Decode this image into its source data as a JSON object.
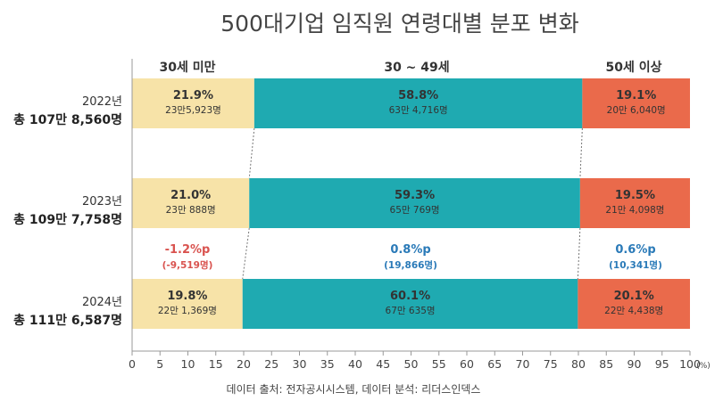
{
  "chart_data": {
    "type": "bar",
    "orientation": "horizontal",
    "stacked": true,
    "title": "500대기업 임직원 연령대별 분포 변화",
    "categories": [
      "30세 미만",
      "30 ~ 49세",
      "50세 이상"
    ],
    "xlim": [
      0,
      100
    ],
    "x_ticks": [
      "0",
      "5",
      "10",
      "15",
      "20",
      "25",
      "30",
      "35",
      "40",
      "45",
      "50",
      "55",
      "60",
      "65",
      "70",
      "75",
      "80",
      "85",
      "90",
      "95",
      "100"
    ],
    "x_unit": "(%)",
    "colors": [
      "#F7E3A8",
      "#1FAAB1",
      "#EA6A4B"
    ],
    "rows": [
      {
        "year": "2022년",
        "total": "총 107만 8,560명",
        "values": [
          21.9,
          58.8,
          19.1
        ],
        "pct_labels": [
          "21.9%",
          "58.8%",
          "19.1%"
        ],
        "count_labels": [
          "23만5,923명",
          "63만 4,716명",
          "20만 6,040명"
        ]
      },
      {
        "year": "2023년",
        "total": "총 109만 7,758명",
        "values": [
          21.0,
          59.3,
          19.5
        ],
        "pct_labels": [
          "21.0%",
          "59.3%",
          "19.5%"
        ],
        "count_labels": [
          "23만 888명",
          "65만 769명",
          "21만 4,098명"
        ]
      },
      {
        "year": "2024년",
        "total": "총 111만 6,587명",
        "values": [
          19.8,
          60.1,
          20.1
        ],
        "pct_labels": [
          "19.8%",
          "60.1%",
          "20.1%"
        ],
        "count_labels": [
          "22만 1,369명",
          "67만 635명",
          "22만 4,438명"
        ]
      }
    ],
    "changes": [
      {
        "pct": "-1.2%p",
        "count": "(-9,519명)",
        "color": "#D9534F"
      },
      {
        "pct": "0.8%p",
        "count": "(19,866명)",
        "color": "#2A7AB8"
      },
      {
        "pct": "0.6%p",
        "count": "(10,341명)",
        "color": "#2A7AB8"
      }
    ],
    "source": "데이터 출처: 전자공시시스템, 데이터 분석: 리더스인덱스"
  }
}
